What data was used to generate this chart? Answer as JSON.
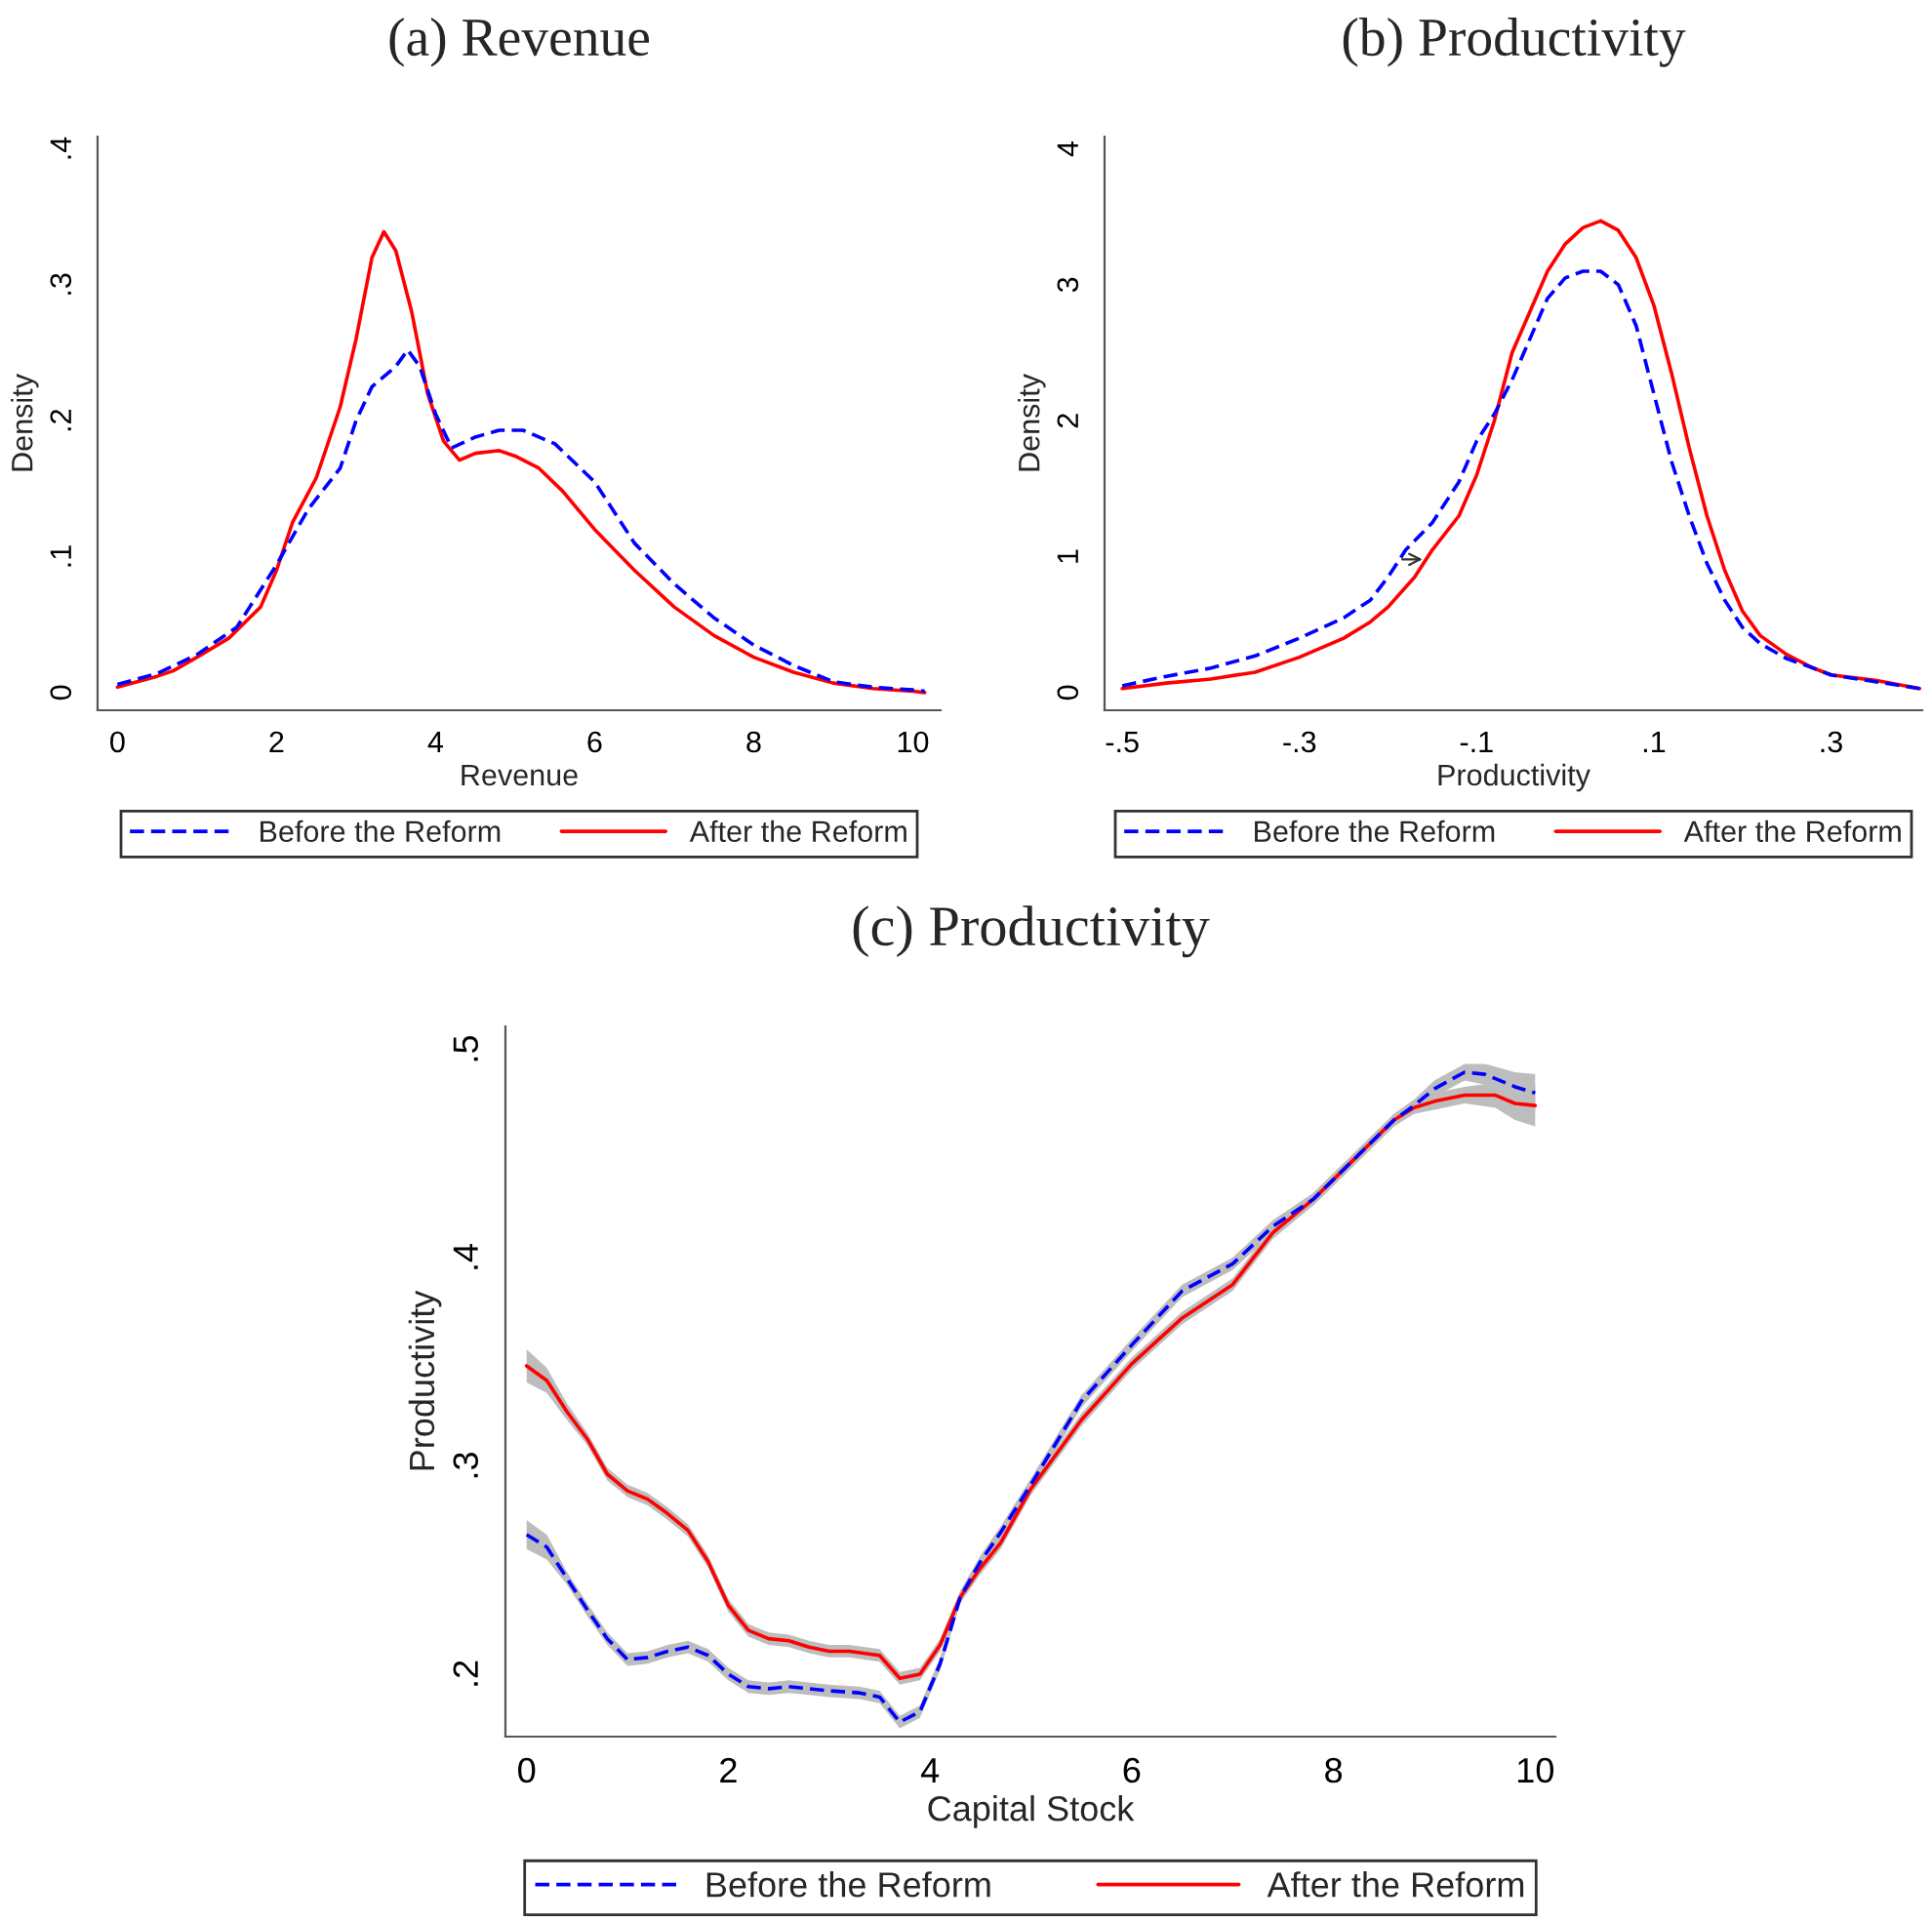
{
  "chart_data": [
    {
      "type": "line",
      "title": "(a) Revenue",
      "xlabel": "Revenue",
      "ylabel": "Density",
      "xlim": [
        -0.25,
        10.35
      ],
      "ylim": [
        -0.013,
        0.409
      ],
      "xticks": [
        0,
        2,
        4,
        6,
        8,
        10
      ],
      "yticks": [
        {
          "value": 0,
          "label": "0"
        },
        {
          "value": 0.1,
          "label": ".1"
        },
        {
          "value": 0.2,
          "label": ".2"
        },
        {
          "value": 0.3,
          "label": ".3"
        },
        {
          "value": 0.4,
          "label": ".4"
        }
      ],
      "legend": "bottom",
      "series": [
        {
          "name": "Before the Reform",
          "color": "#0000ff",
          "line_style": "dashed",
          "x": [
            0,
            0.5,
            1,
            1.5,
            2,
            2.4,
            2.8,
            3,
            3.2,
            3.5,
            3.65,
            3.8,
            4,
            4.2,
            4.5,
            4.8,
            5.1,
            5.5,
            6,
            6.5,
            7,
            7.5,
            8,
            8.5,
            9,
            9.5,
            10,
            10.15
          ],
          "values": [
            0.006,
            0.014,
            0.028,
            0.048,
            0.094,
            0.135,
            0.165,
            0.2,
            0.225,
            0.24,
            0.252,
            0.24,
            0.205,
            0.18,
            0.188,
            0.193,
            0.193,
            0.183,
            0.155,
            0.11,
            0.08,
            0.055,
            0.035,
            0.02,
            0.008,
            0.004,
            0.002,
            0.001
          ]
        },
        {
          "name": "After the Reform",
          "color": "#ff0000",
          "line_style": "solid",
          "x": [
            0,
            0.5,
            0.7,
            1,
            1.4,
            1.8,
            2,
            2.2,
            2.5,
            2.8,
            3,
            3.2,
            3.35,
            3.5,
            3.7,
            3.9,
            4.1,
            4.3,
            4.5,
            4.8,
            5,
            5.3,
            5.6,
            6,
            6.5,
            7,
            7.5,
            8,
            8.5,
            9,
            9.5,
            10,
            10.15
          ],
          "values": [
            0.004,
            0.012,
            0.016,
            0.026,
            0.04,
            0.063,
            0.09,
            0.125,
            0.158,
            0.21,
            0.26,
            0.32,
            0.339,
            0.325,
            0.28,
            0.22,
            0.185,
            0.171,
            0.176,
            0.178,
            0.174,
            0.165,
            0.148,
            0.12,
            0.09,
            0.063,
            0.042,
            0.026,
            0.015,
            0.007,
            0.003,
            0.001,
            0.0
          ]
        }
      ]
    },
    {
      "type": "line",
      "title": "(b) Productivity",
      "xlabel": "Productivity",
      "ylabel": "Density",
      "xlim": [
        -0.52,
        0.403
      ],
      "ylim": [
        -0.13,
        4.09
      ],
      "xticks": [
        {
          "value": -0.5,
          "label": "-.5"
        },
        {
          "value": -0.3,
          "label": "-.3"
        },
        {
          "value": -0.1,
          "label": "-.1"
        },
        {
          "value": 0.1,
          "label": ".1"
        },
        {
          "value": 0.3,
          "label": ".3"
        }
      ],
      "yticks": [
        0,
        1,
        2,
        3,
        4
      ],
      "legend": "bottom",
      "series": [
        {
          "name": "Before the Reform",
          "color": "#0000ff",
          "line_style": "dashed",
          "x": [
            -0.5,
            -0.45,
            -0.4,
            -0.35,
            -0.3,
            -0.25,
            -0.22,
            -0.2,
            -0.18,
            -0.15,
            -0.12,
            -0.1,
            -0.08,
            -0.06,
            -0.04,
            -0.02,
            0.0,
            0.02,
            0.04,
            0.06,
            0.08,
            0.1,
            0.12,
            0.14,
            0.16,
            0.18,
            0.2,
            0.22,
            0.25,
            0.28,
            0.3,
            0.35,
            0.4
          ],
          "values": [
            0.05,
            0.12,
            0.18,
            0.27,
            0.4,
            0.55,
            0.68,
            0.85,
            1.05,
            1.25,
            1.55,
            1.85,
            2.05,
            2.3,
            2.6,
            2.9,
            3.05,
            3.1,
            3.1,
            3.0,
            2.7,
            2.2,
            1.7,
            1.3,
            0.95,
            0.68,
            0.48,
            0.36,
            0.25,
            0.18,
            0.13,
            0.08,
            0.03
          ]
        },
        {
          "name": "After the Reform",
          "color": "#ff0000",
          "line_style": "solid",
          "x": [
            -0.5,
            -0.45,
            -0.4,
            -0.35,
            -0.3,
            -0.25,
            -0.22,
            -0.2,
            -0.17,
            -0.15,
            -0.12,
            -0.1,
            -0.08,
            -0.06,
            -0.04,
            -0.02,
            0.0,
            0.02,
            0.04,
            0.06,
            0.08,
            0.1,
            0.12,
            0.14,
            0.16,
            0.18,
            0.2,
            0.22,
            0.25,
            0.28,
            0.3,
            0.35,
            0.4
          ],
          "values": [
            0.03,
            0.07,
            0.1,
            0.15,
            0.26,
            0.4,
            0.52,
            0.63,
            0.85,
            1.05,
            1.3,
            1.6,
            2.0,
            2.5,
            2.8,
            3.1,
            3.3,
            3.42,
            3.47,
            3.4,
            3.2,
            2.85,
            2.35,
            1.8,
            1.3,
            0.9,
            0.6,
            0.42,
            0.28,
            0.18,
            0.13,
            0.09,
            0.03
          ]
        }
      ]
    },
    {
      "type": "line",
      "title": "(c) Productivity",
      "xlabel": "Capital Stock",
      "ylabel": "Productivity",
      "xlim": [
        -0.21,
        10.2
      ],
      "ylim": [
        0.17,
        0.511
      ],
      "xticks": [
        0,
        2,
        4,
        6,
        8,
        10
      ],
      "yticks": [
        {
          "value": 0.2,
          "label": ".2"
        },
        {
          "value": 0.3,
          "label": ".3"
        },
        {
          "value": 0.4,
          "label": ".4"
        },
        {
          "value": 0.5,
          "label": ".5"
        }
      ],
      "legend": "bottom",
      "series": [
        {
          "name": "Before the Reform",
          "color": "#0000ff",
          "line_style": "dashed",
          "x": [
            0,
            0.2,
            0.4,
            0.6,
            0.8,
            1.0,
            1.2,
            1.4,
            1.6,
            1.8,
            2.0,
            2.2,
            2.4,
            2.6,
            2.8,
            3.0,
            3.3,
            3.5,
            3.7,
            3.9,
            4.1,
            4.3,
            4.5,
            4.7,
            5.0,
            5.5,
            6.0,
            6.5,
            7.0,
            7.4,
            7.8,
            8.2,
            8.6,
            8.8,
            9.0,
            9.3,
            9.5,
            9.8,
            10.0
          ],
          "values": [
            0.267,
            0.261,
            0.246,
            0.231,
            0.217,
            0.207,
            0.208,
            0.211,
            0.213,
            0.209,
            0.2,
            0.194,
            0.193,
            0.194,
            0.193,
            0.192,
            0.191,
            0.189,
            0.177,
            0.182,
            0.205,
            0.237,
            0.254,
            0.268,
            0.291,
            0.331,
            0.358,
            0.384,
            0.397,
            0.415,
            0.428,
            0.447,
            0.466,
            0.473,
            0.481,
            0.489,
            0.488,
            0.482,
            0.479
          ],
          "lower": [
            0.26,
            0.255,
            0.243,
            0.228,
            0.214,
            0.204,
            0.205,
            0.208,
            0.21,
            0.206,
            0.197,
            0.191,
            0.19,
            0.191,
            0.19,
            0.189,
            0.188,
            0.186,
            0.174,
            0.179,
            0.202,
            0.234,
            0.251,
            0.265,
            0.288,
            0.328,
            0.355,
            0.381,
            0.394,
            0.412,
            0.425,
            0.444,
            0.463,
            0.47,
            0.477,
            0.485,
            0.483,
            0.475,
            0.47
          ],
          "upper": [
            0.274,
            0.267,
            0.249,
            0.234,
            0.22,
            0.21,
            0.211,
            0.214,
            0.216,
            0.212,
            0.203,
            0.197,
            0.196,
            0.197,
            0.196,
            0.195,
            0.194,
            0.192,
            0.18,
            0.185,
            0.208,
            0.24,
            0.257,
            0.271,
            0.294,
            0.334,
            0.361,
            0.387,
            0.4,
            0.418,
            0.431,
            0.45,
            0.469,
            0.476,
            0.485,
            0.493,
            0.493,
            0.489,
            0.488
          ]
        },
        {
          "name": "After the Reform",
          "color": "#ff0000",
          "line_style": "solid",
          "x": [
            0,
            0.2,
            0.4,
            0.6,
            0.8,
            1.0,
            1.2,
            1.4,
            1.6,
            1.8,
            2.0,
            2.2,
            2.4,
            2.6,
            2.8,
            3.0,
            3.2,
            3.5,
            3.7,
            3.9,
            4.1,
            4.3,
            4.5,
            4.7,
            5.0,
            5.5,
            6.0,
            6.5,
            7.0,
            7.4,
            7.8,
            8.2,
            8.6,
            8.8,
            9.0,
            9.3,
            9.6,
            9.8,
            10.0
          ],
          "values": [
            0.348,
            0.341,
            0.326,
            0.313,
            0.296,
            0.288,
            0.284,
            0.277,
            0.269,
            0.254,
            0.233,
            0.221,
            0.217,
            0.216,
            0.213,
            0.211,
            0.211,
            0.209,
            0.198,
            0.2,
            0.214,
            0.237,
            0.251,
            0.263,
            0.289,
            0.322,
            0.349,
            0.371,
            0.387,
            0.412,
            0.428,
            0.447,
            0.466,
            0.472,
            0.475,
            0.478,
            0.478,
            0.474,
            0.473
          ],
          "lower": [
            0.34,
            0.335,
            0.322,
            0.31,
            0.293,
            0.285,
            0.281,
            0.274,
            0.266,
            0.251,
            0.23,
            0.218,
            0.214,
            0.213,
            0.21,
            0.208,
            0.208,
            0.206,
            0.195,
            0.197,
            0.211,
            0.234,
            0.248,
            0.26,
            0.286,
            0.319,
            0.346,
            0.368,
            0.384,
            0.409,
            0.425,
            0.444,
            0.463,
            0.469,
            0.471,
            0.474,
            0.472,
            0.466,
            0.463
          ],
          "upper": [
            0.356,
            0.347,
            0.33,
            0.316,
            0.299,
            0.291,
            0.287,
            0.28,
            0.272,
            0.257,
            0.236,
            0.224,
            0.22,
            0.219,
            0.216,
            0.214,
            0.214,
            0.212,
            0.201,
            0.203,
            0.217,
            0.24,
            0.254,
            0.266,
            0.292,
            0.325,
            0.352,
            0.374,
            0.39,
            0.415,
            0.431,
            0.45,
            0.469,
            0.475,
            0.479,
            0.482,
            0.484,
            0.482,
            0.483
          ]
        }
      ]
    }
  ]
}
